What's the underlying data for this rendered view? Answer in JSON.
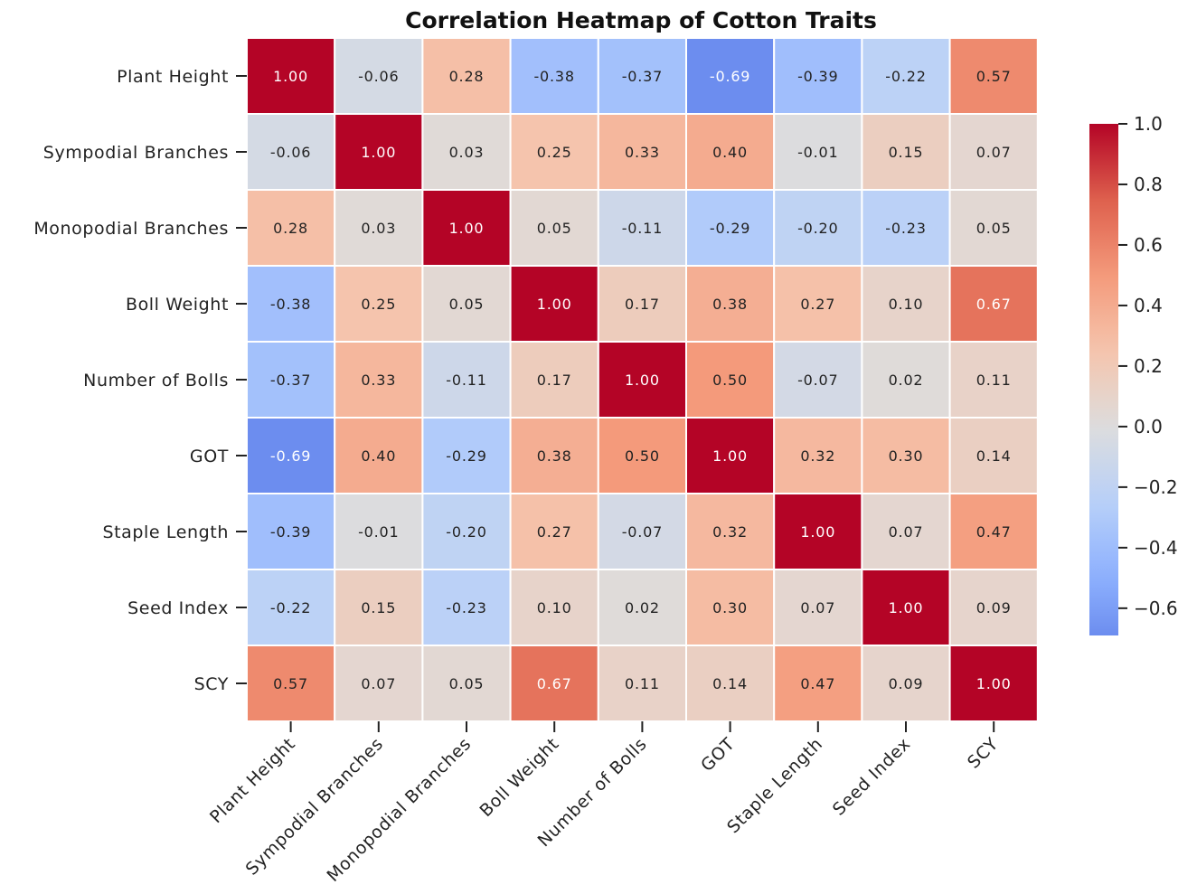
{
  "chart_data": {
    "type": "heatmap",
    "title": "Correlation Heatmap of Cotton Traits",
    "rows": [
      "Plant Height",
      "Sympodial Branches",
      "Monopodial Branches",
      "Boll Weight",
      "Number of Bolls",
      "GOT",
      "Staple Length",
      "Seed Index",
      "SCY"
    ],
    "columns": [
      "Plant Height",
      "Sympodial Branches",
      "Monopodial Branches",
      "Boll Weight",
      "Number of Bolls",
      "GOT",
      "Staple Length",
      "Seed Index",
      "SCY"
    ],
    "values": [
      [
        1.0,
        -0.06,
        0.28,
        -0.38,
        -0.37,
        -0.69,
        -0.39,
        -0.22,
        0.57
      ],
      [
        -0.06,
        1.0,
        0.03,
        0.25,
        0.33,
        0.4,
        -0.01,
        0.15,
        0.07
      ],
      [
        0.28,
        0.03,
        1.0,
        0.05,
        -0.11,
        -0.29,
        -0.2,
        -0.23,
        0.05
      ],
      [
        -0.38,
        0.25,
        0.05,
        1.0,
        0.17,
        0.38,
        0.27,
        0.1,
        0.67
      ],
      [
        -0.37,
        0.33,
        -0.11,
        0.17,
        1.0,
        0.5,
        -0.07,
        0.02,
        0.11
      ],
      [
        -0.69,
        0.4,
        -0.29,
        0.38,
        0.5,
        1.0,
        0.32,
        0.3,
        0.14
      ],
      [
        -0.39,
        -0.01,
        -0.2,
        0.27,
        -0.07,
        0.32,
        1.0,
        0.07,
        0.47
      ],
      [
        -0.22,
        0.15,
        -0.23,
        0.1,
        0.02,
        0.3,
        0.07,
        1.0,
        0.09
      ],
      [
        0.57,
        0.07,
        0.05,
        0.67,
        0.11,
        0.14,
        0.47,
        0.09,
        1.0
      ]
    ],
    "colormap": "coolwarm",
    "vmin": -0.69,
    "vmax": 1.0,
    "colorbar_ticks": [
      1.0,
      0.8,
      0.6,
      0.4,
      0.2,
      0.0,
      -0.2,
      -0.4,
      -0.6
    ],
    "colorbar_tick_labels": [
      "1.0",
      "0.8",
      "0.6",
      "0.4",
      "0.2",
      "0.0",
      "−0.2",
      "−0.4",
      "−0.6"
    ],
    "annotation_format": "0.00",
    "grid": true,
    "legend_placement": "right"
  }
}
